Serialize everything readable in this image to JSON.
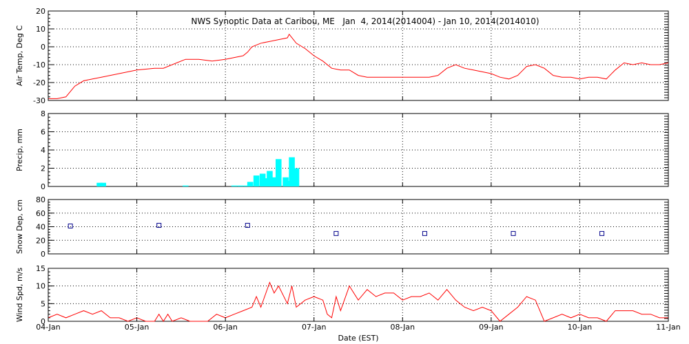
{
  "title": "NWS Synoptic Data at Caribou, ME   Jan  4, 2014(2014004) - Jan 10, 2014(2014010)",
  "x_axis": {
    "label": "Date (EST)",
    "ticks": [
      "04-Jan",
      "05-Jan",
      "06-Jan",
      "07-Jan",
      "08-Jan",
      "09-Jan",
      "10-Jan",
      "11-Jan"
    ],
    "range_days": [
      0,
      7
    ]
  },
  "colors": {
    "temp": "#ff0000",
    "precip": "#00ffff",
    "snow": "#00008b",
    "wind": "#ff0000",
    "axes": "#000000"
  },
  "chart_data": [
    {
      "type": "line",
      "ylabel": "Air Temp, Deg C",
      "ylim": [
        -30,
        20
      ],
      "yticks": [
        20,
        10,
        0,
        -10,
        -20,
        -30
      ],
      "grid": true,
      "x": [
        0,
        0.1,
        0.2,
        0.3,
        0.4,
        0.5,
        0.6,
        0.8,
        1.0,
        1.2,
        1.3,
        1.45,
        1.55,
        1.7,
        1.85,
        2.0,
        2.1,
        2.2,
        2.25,
        2.3,
        2.4,
        2.5,
        2.6,
        2.7,
        2.72,
        2.8,
        2.9,
        3.0,
        3.1,
        3.2,
        3.3,
        3.4,
        3.5,
        3.6,
        3.8,
        4.0,
        4.2,
        4.3,
        4.4,
        4.5,
        4.6,
        4.7,
        4.8,
        4.9,
        5.0,
        5.1,
        5.2,
        5.3,
        5.4,
        5.5,
        5.6,
        5.7,
        5.8,
        5.9,
        6.0,
        6.1,
        6.2,
        6.3,
        6.4,
        6.5,
        6.6,
        6.7,
        6.8,
        6.9,
        7.0
      ],
      "y": [
        -29,
        -29,
        -28,
        -22,
        -19,
        -18,
        -17,
        -15,
        -13,
        -12,
        -12,
        -9,
        -7,
        -7,
        -8,
        -7,
        -6,
        -5,
        -3,
        0,
        2,
        3,
        4,
        5,
        7,
        2,
        -1,
        -5,
        -8,
        -12,
        -13,
        -13,
        -16,
        -17,
        -17,
        -17,
        -17,
        -17,
        -16,
        -12,
        -10,
        -12,
        -13,
        -14,
        -15,
        -17,
        -18,
        -16,
        -11,
        -10,
        -12,
        -16,
        -17,
        -17,
        -18,
        -17,
        -17,
        -18,
        -13,
        -9,
        -10,
        -9,
        -10,
        -10,
        -9
      ]
    },
    {
      "type": "bar",
      "ylabel": "Precip, mm",
      "ylim": [
        0,
        8
      ],
      "yticks": [
        8,
        6,
        4,
        2,
        0
      ],
      "grid": true,
      "x": [
        0.58,
        0.62,
        1.55,
        2.1,
        2.17,
        2.24,
        2.28,
        2.35,
        2.42,
        2.47,
        2.5,
        2.55,
        2.6,
        2.68,
        2.72,
        2.75,
        2.8
      ],
      "values": [
        0.4,
        0.4,
        0.1,
        0.1,
        0.1,
        0.1,
        0.5,
        1.2,
        1.4,
        0.9,
        1.7,
        1.0,
        3.0,
        1.0,
        0.6,
        3.2,
        2.0
      ]
    },
    {
      "type": "scatter",
      "ylabel": "Snow Dep, cm",
      "ylim": [
        0,
        80
      ],
      "yticks": [
        80,
        60,
        40,
        20,
        0
      ],
      "grid": true,
      "x": [
        0.25,
        1.25,
        2.25,
        3.25,
        4.25,
        5.25,
        6.25
      ],
      "y": [
        41,
        42,
        42,
        30,
        30,
        30,
        30
      ]
    },
    {
      "type": "line",
      "ylabel": "Wind Spd, m/s",
      "ylim": [
        0,
        15
      ],
      "yticks": [
        15,
        10,
        5,
        0
      ],
      "grid": true,
      "x": [
        0,
        0.1,
        0.2,
        0.3,
        0.4,
        0.5,
        0.6,
        0.7,
        0.8,
        0.9,
        1.0,
        1.1,
        1.2,
        1.25,
        1.3,
        1.35,
        1.4,
        1.5,
        1.6,
        1.7,
        1.8,
        1.9,
        2.0,
        2.1,
        2.2,
        2.3,
        2.35,
        2.4,
        2.5,
        2.55,
        2.6,
        2.7,
        2.75,
        2.8,
        2.9,
        3.0,
        3.1,
        3.15,
        3.2,
        3.25,
        3.3,
        3.4,
        3.5,
        3.6,
        3.7,
        3.8,
        3.9,
        4.0,
        4.1,
        4.2,
        4.3,
        4.4,
        4.5,
        4.6,
        4.7,
        4.8,
        4.9,
        5.0,
        5.1,
        5.2,
        5.3,
        5.4,
        5.5,
        5.6,
        5.7,
        5.8,
        5.9,
        6.0,
        6.1,
        6.2,
        6.3,
        6.4,
        6.5,
        6.6,
        6.7,
        6.8,
        6.9,
        7.0
      ],
      "y": [
        1,
        2,
        1,
        2,
        3,
        2,
        3,
        1,
        1,
        0,
        1,
        0,
        0,
        2,
        0,
        2,
        0,
        1,
        0,
        0,
        0,
        2,
        1,
        2,
        3,
        4,
        7,
        4,
        11,
        8,
        10,
        5,
        10,
        4,
        6,
        7,
        6,
        2,
        1,
        7,
        3,
        10,
        6,
        9,
        7,
        8,
        8,
        6,
        7,
        7,
        8,
        6,
        9,
        6,
        4,
        3,
        4,
        3,
        0,
        2,
        4,
        7,
        6,
        0,
        1,
        2,
        1,
        2,
        1,
        1,
        0,
        3,
        3,
        3,
        2,
        2,
        1,
        1
      ]
    }
  ]
}
